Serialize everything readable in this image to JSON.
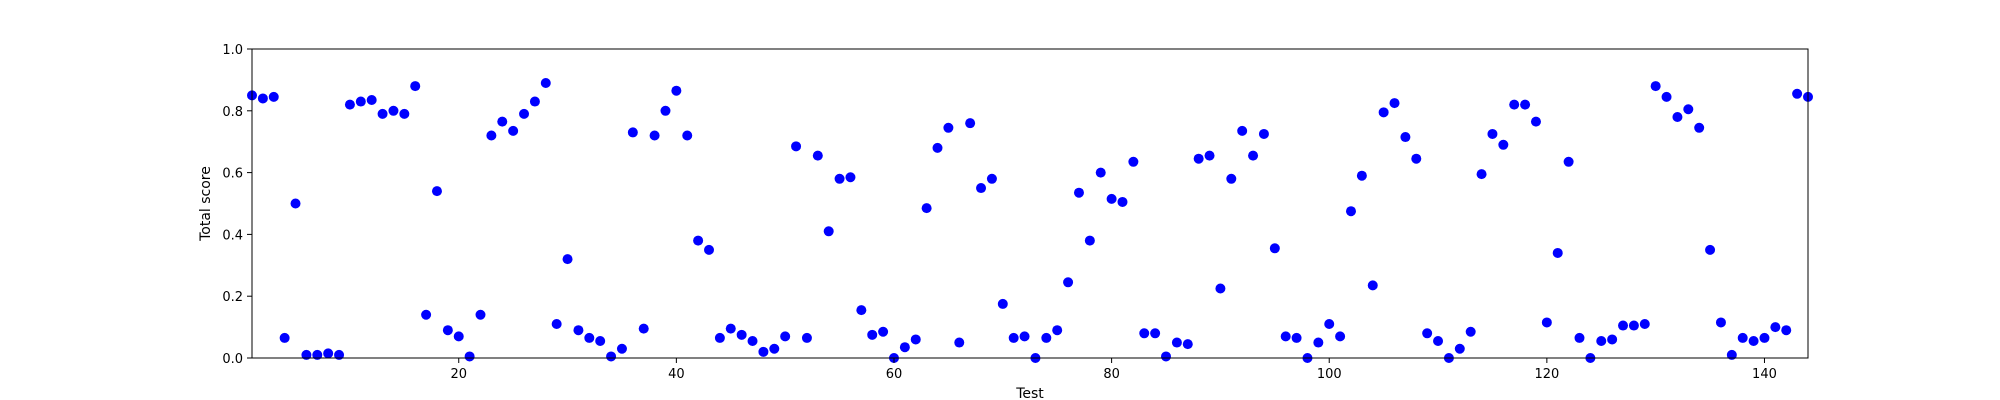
{
  "chart_data": {
    "type": "scatter",
    "title": "",
    "xlabel": "Test",
    "ylabel": "Total score",
    "xlim": [
      1,
      144
    ],
    "ylim": [
      0,
      1.0
    ],
    "xticks": [
      20,
      40,
      60,
      80,
      100,
      120,
      140
    ],
    "yticks": [
      0.0,
      0.2,
      0.4,
      0.6,
      0.8,
      1.0
    ],
    "ytick_labels": [
      "0.0",
      "0.2",
      "0.4",
      "0.6",
      "0.8",
      "1.0"
    ],
    "grid": false,
    "legend": "none",
    "marker_color": "#0000ff",
    "series": [
      {
        "x": [
          1,
          2,
          3,
          4,
          5,
          6,
          7,
          8,
          9,
          10,
          11,
          12,
          13,
          14,
          15,
          16,
          17,
          18,
          19,
          20,
          21,
          22,
          23,
          24,
          25,
          26,
          27,
          28,
          29,
          30,
          31,
          32,
          33,
          34,
          35,
          36,
          37,
          38,
          39,
          40,
          41,
          42,
          43,
          44,
          45,
          46,
          47,
          48,
          49,
          50,
          51,
          52,
          53,
          54,
          55,
          56,
          57,
          58,
          59,
          60,
          61,
          62,
          63,
          64,
          65,
          66,
          67,
          68,
          69,
          70,
          71,
          72,
          73,
          74,
          75,
          76,
          77,
          78,
          79,
          80,
          81,
          82,
          83,
          84,
          85,
          86,
          87,
          88,
          89,
          90,
          91,
          92,
          93,
          94,
          95,
          96,
          97,
          98,
          99,
          100,
          101,
          102,
          103,
          104,
          105,
          106,
          107,
          108,
          109,
          110,
          111,
          112,
          113,
          114,
          115,
          116,
          117,
          118,
          119,
          120,
          121,
          122,
          123,
          124,
          125,
          126,
          127,
          128,
          129,
          130,
          131,
          132,
          133,
          134,
          135,
          136,
          137,
          138,
          139,
          140,
          141,
          142,
          143,
          144
        ],
        "y": [
          0.85,
          0.84,
          0.845,
          0.065,
          0.5,
          0.01,
          0.01,
          0.015,
          0.01,
          0.82,
          0.83,
          0.835,
          0.79,
          0.8,
          0.79,
          0.88,
          0.14,
          0.54,
          0.09,
          0.07,
          0.005,
          0.14,
          0.72,
          0.765,
          0.735,
          0.79,
          0.83,
          0.89,
          0.11,
          0.32,
          0.09,
          0.065,
          0.055,
          0.005,
          0.03,
          0.73,
          0.095,
          0.72,
          0.8,
          0.865,
          0.72,
          0.38,
          0.35,
          0.065,
          0.095,
          0.075,
          0.055,
          0.02,
          0.03,
          0.07,
          0.685,
          0.065,
          0.655,
          0.41,
          0.58,
          0.585,
          0.155,
          0.075,
          0.085,
          0.0,
          0.035,
          0.06,
          0.485,
          0.68,
          0.745,
          0.05,
          0.76,
          0.55,
          0.58,
          0.175,
          0.065,
          0.07,
          0.0,
          0.065,
          0.09,
          0.245,
          0.535,
          0.38,
          0.6,
          0.515,
          0.505,
          0.635,
          0.08,
          0.08,
          0.005,
          0.05,
          0.045,
          0.645,
          0.655,
          0.225,
          0.58,
          0.735,
          0.655,
          0.725,
          0.355,
          0.07,
          0.065,
          0.0,
          0.05,
          0.11,
          0.07,
          0.475,
          0.59,
          0.235,
          0.795,
          0.825,
          0.715,
          0.645,
          0.08,
          0.055,
          0.0,
          0.03,
          0.085,
          0.595,
          0.725,
          0.69,
          0.82,
          0.82,
          0.765,
          0.115,
          0.34,
          0.635,
          0.065,
          0.0,
          0.055,
          0.06,
          0.105,
          0.105,
          0.11,
          0.88,
          0.845,
          0.78,
          0.805,
          0.745,
          0.35,
          0.115,
          0.01,
          0.065,
          0.055,
          0.065,
          0.1,
          0.09,
          0.855,
          0.845
        ]
      }
    ]
  }
}
